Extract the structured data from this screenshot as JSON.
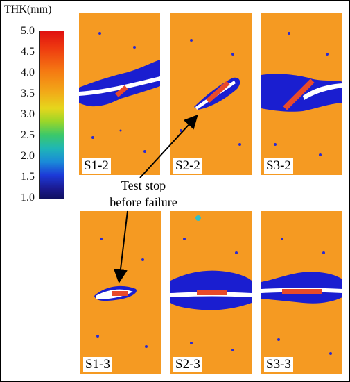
{
  "scale": {
    "title": "THK(mm)",
    "ticks": [
      "5.0",
      "4.5",
      "4.0",
      "3.5",
      "3.0",
      "2.5",
      "2.0",
      "1.5",
      "1.0"
    ],
    "colors": {
      "high": "#e01010",
      "background": "#f59a22",
      "damage": "#1a1ed0",
      "low": "#101060"
    }
  },
  "panels": [
    {
      "label": "S1-2"
    },
    {
      "label": "S2-2"
    },
    {
      "label": "S3-2"
    },
    {
      "label": "S1-3"
    },
    {
      "label": "S2-3"
    },
    {
      "label": "S3-3"
    }
  ],
  "annotation": {
    "line1": "Test stop",
    "line2": "before failure"
  }
}
